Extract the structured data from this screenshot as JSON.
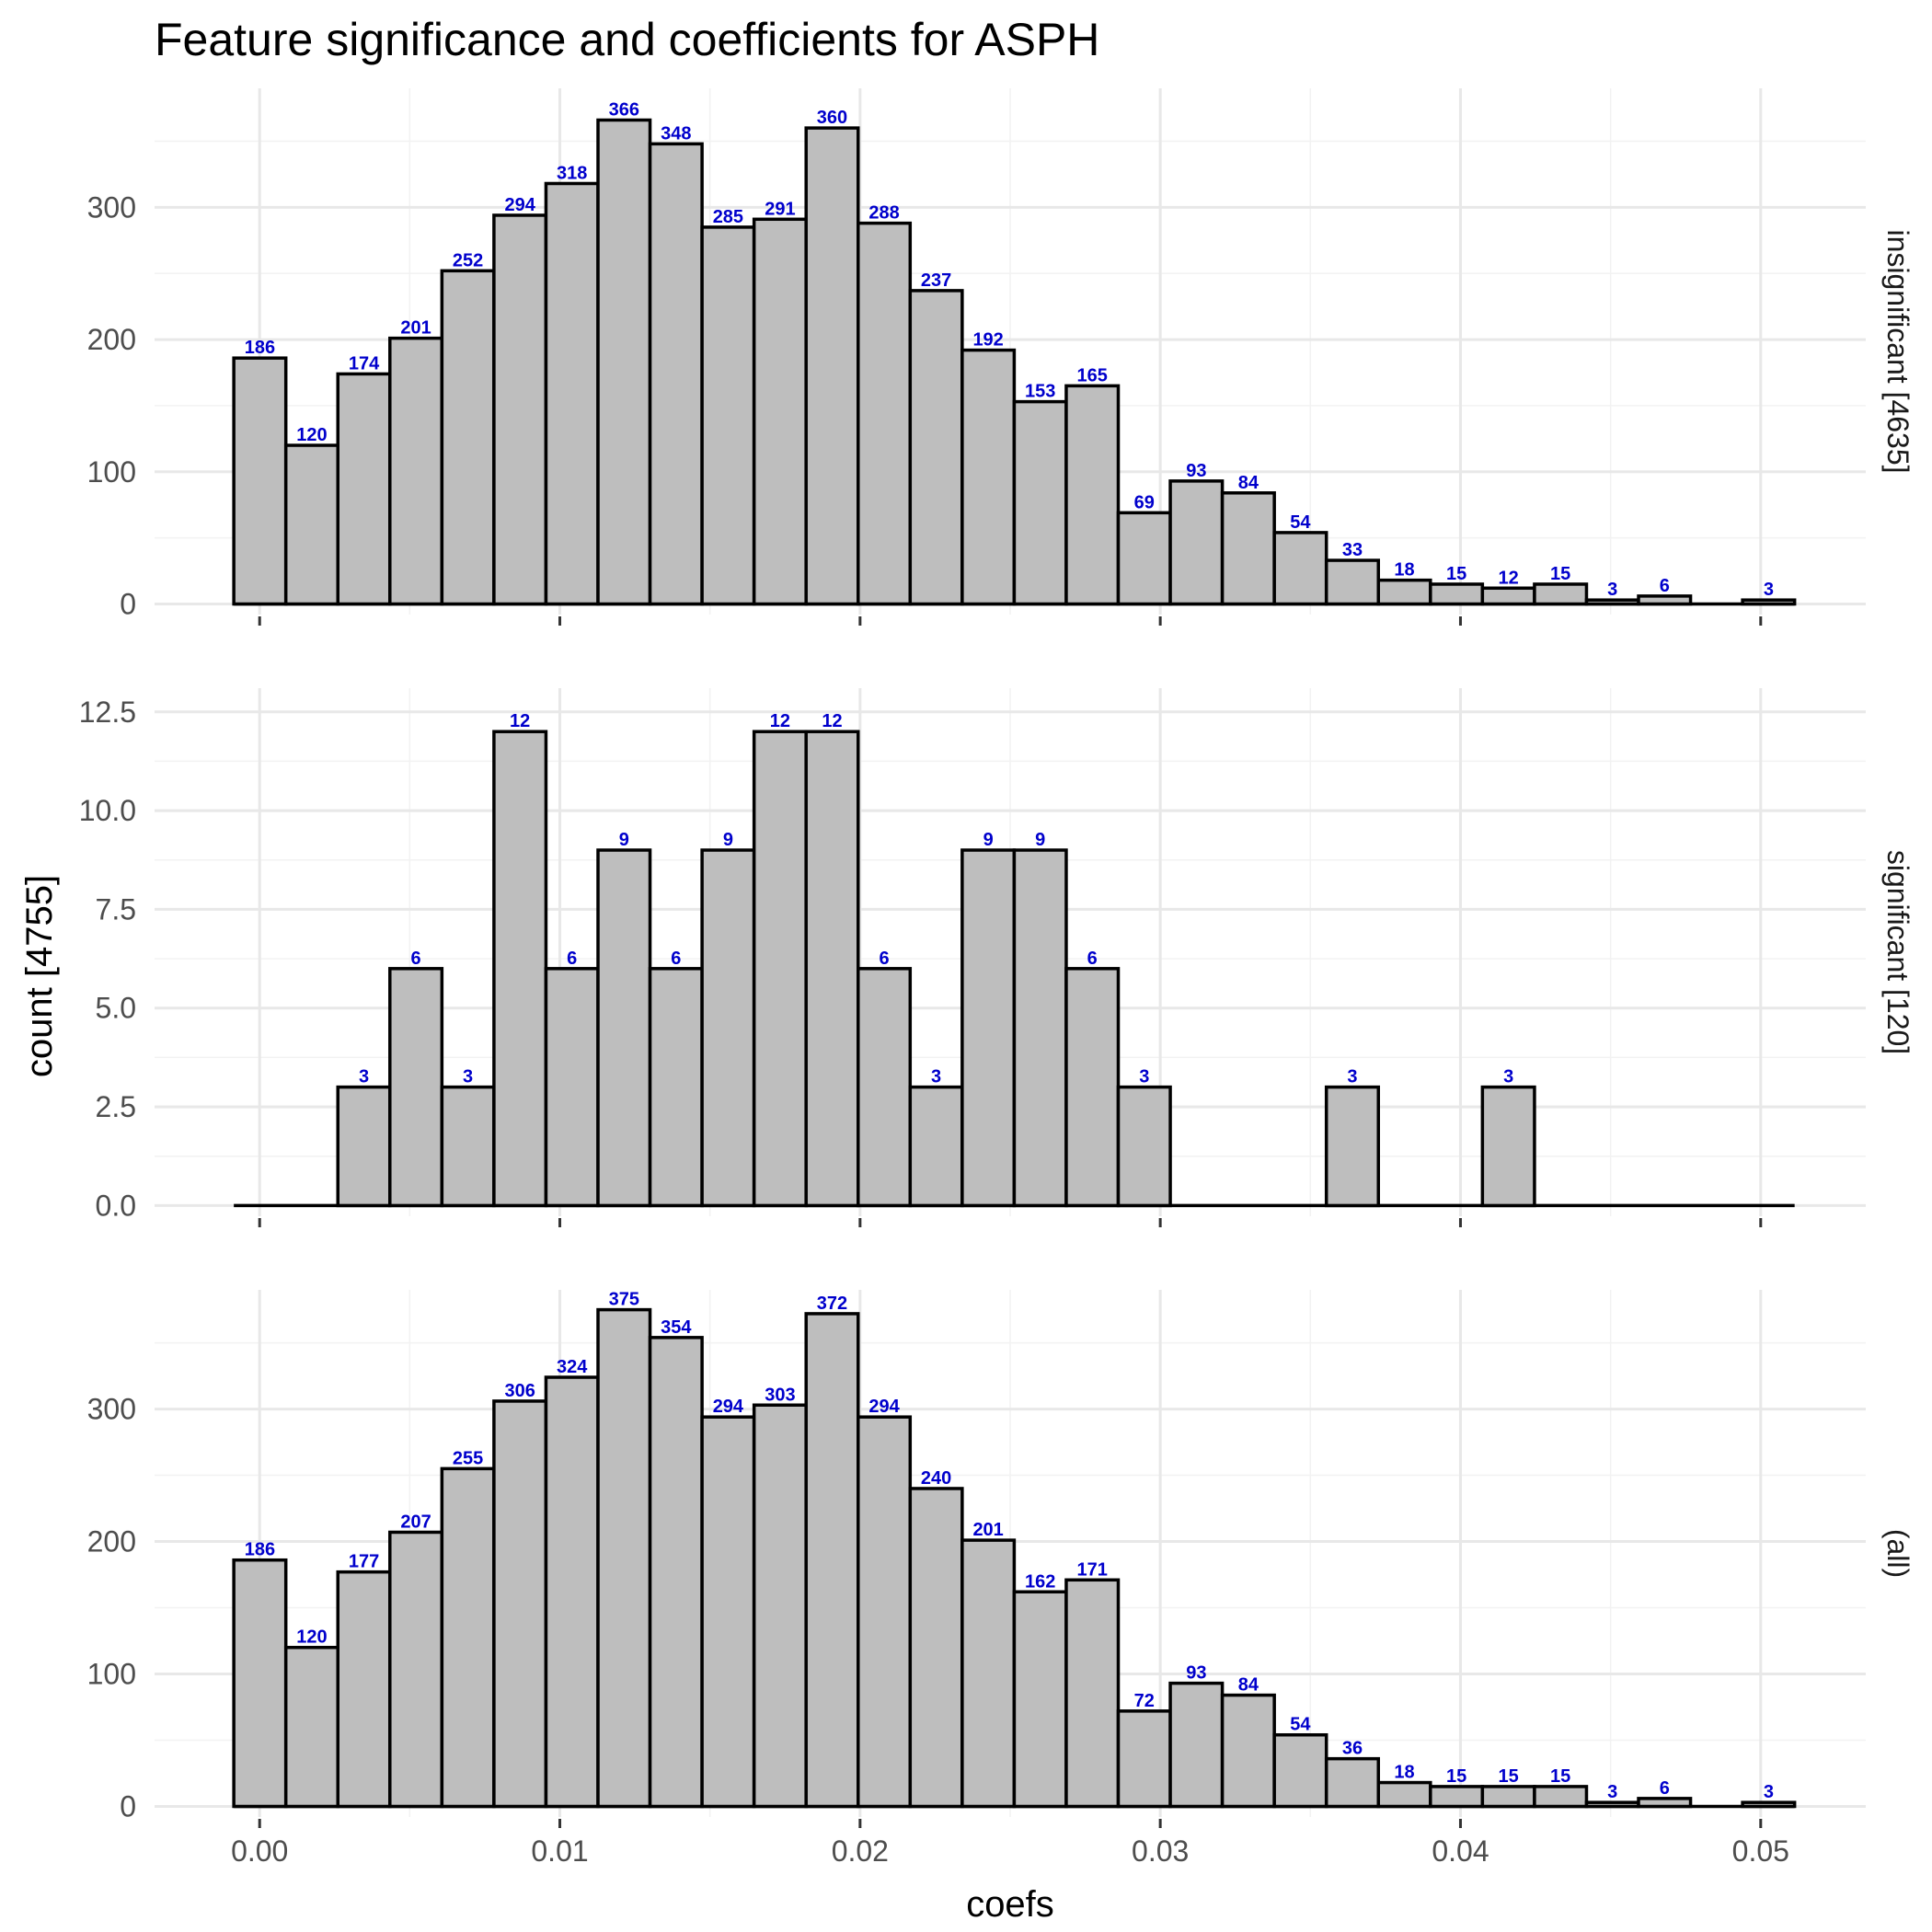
{
  "chart_data": {
    "type": "bar",
    "title": "Feature significance and coefficients for ASPH",
    "xlabel": "coefs",
    "ylabel": "count [4755]",
    "xlim": [
      -0.0035,
      0.0535
    ],
    "x_ticks": [
      "0.00",
      "0.01",
      "0.02",
      "0.03",
      "0.04",
      "0.05"
    ],
    "x_tick_values": [
      0,
      0.01,
      0.02,
      0.03,
      0.04,
      0.05
    ],
    "bin_start": -0.00086,
    "bin_width": 0.001733,
    "grid": true,
    "panels": [
      {
        "name": "insignificant [4635]",
        "values": [
          186,
          120,
          174,
          201,
          252,
          294,
          318,
          366,
          348,
          285,
          291,
          360,
          288,
          237,
          192,
          153,
          165,
          69,
          93,
          84,
          54,
          33,
          18,
          15,
          12,
          15,
          3,
          6,
          0,
          3
        ],
        "ylim": [
          -8,
          390
        ],
        "y_ticks": [
          "0",
          "100",
          "200",
          "300"
        ],
        "y_tick_values": [
          0,
          100,
          200,
          300
        ]
      },
      {
        "name": "significant [120]",
        "values": [
          0,
          0,
          3,
          6,
          3,
          12,
          6,
          9,
          6,
          9,
          12,
          12,
          6,
          3,
          9,
          9,
          6,
          3,
          0,
          0,
          0,
          3,
          0,
          0,
          3,
          0,
          0,
          0,
          0,
          0
        ],
        "ylim": [
          -0.27,
          13.1
        ],
        "y_ticks": [
          "0.0",
          "2.5",
          "5.0",
          "7.5",
          "10.0",
          "12.5"
        ],
        "y_tick_values": [
          0,
          2.5,
          5,
          7.5,
          10,
          12.5
        ]
      },
      {
        "name": "(all)",
        "values": [
          186,
          120,
          177,
          207,
          255,
          306,
          324,
          375,
          354,
          294,
          303,
          372,
          294,
          240,
          201,
          162,
          171,
          72,
          93,
          84,
          54,
          36,
          18,
          15,
          15,
          15,
          3,
          6,
          0,
          3
        ],
        "ylim": [
          -8,
          390
        ],
        "y_ticks": [
          "0",
          "100",
          "200",
          "300"
        ],
        "y_tick_values": [
          0,
          100,
          200,
          300
        ]
      }
    ]
  }
}
